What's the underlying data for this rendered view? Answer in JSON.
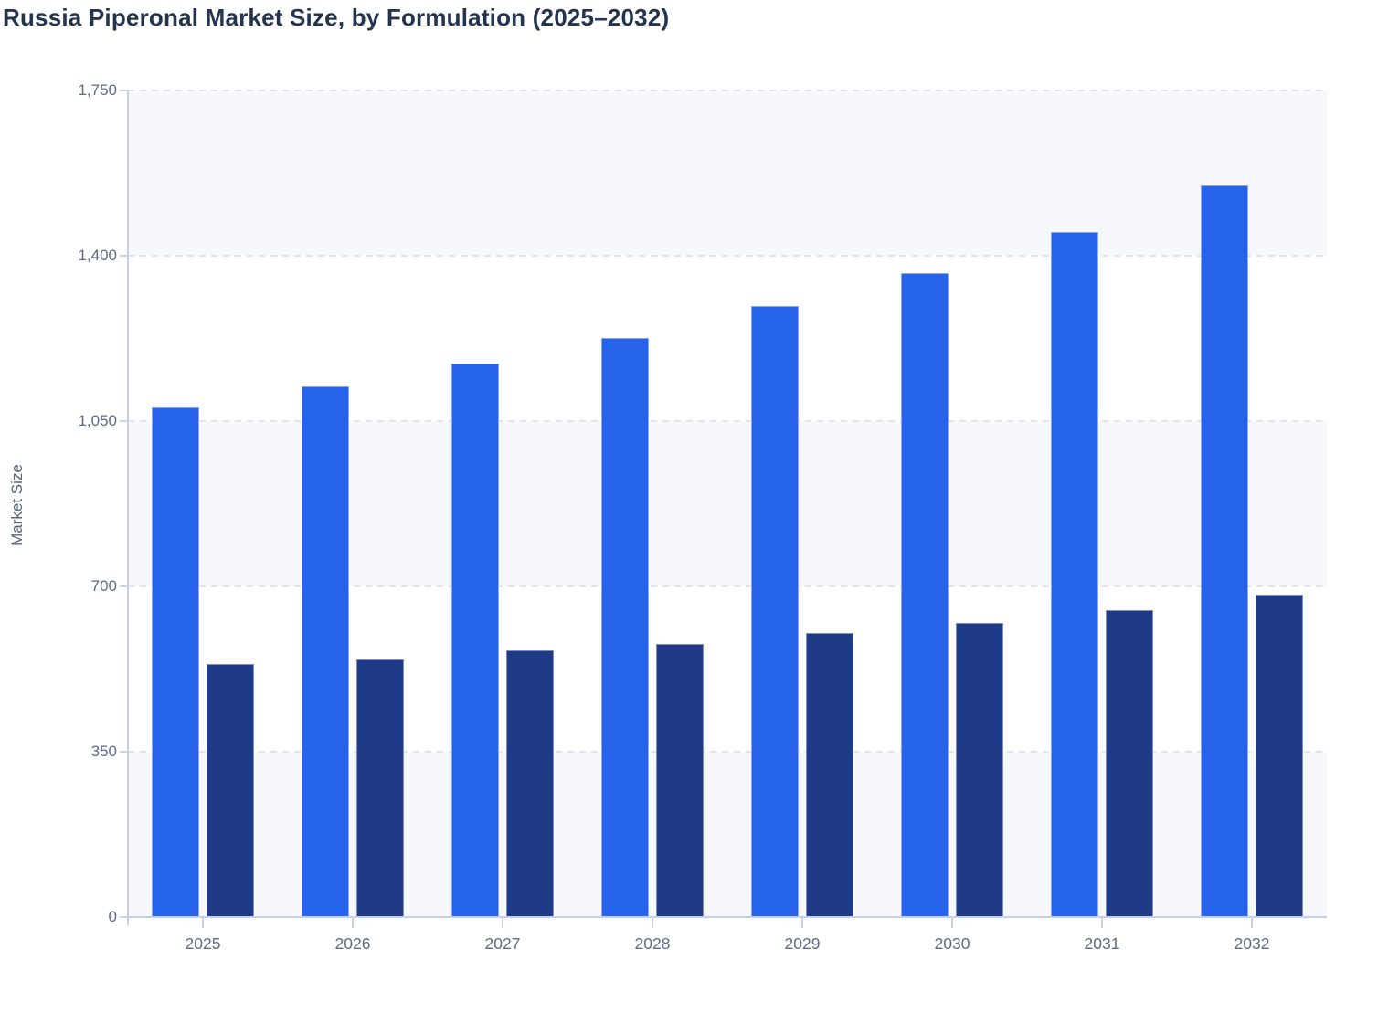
{
  "header": {
    "title": "Russia Piperonal Market Size, by Formulation (2025–2032)"
  },
  "y_axis": {
    "label": "Market Size",
    "tick_labels": [
      "1,750",
      "1,400",
      "1,050",
      "700",
      "350",
      "0"
    ]
  },
  "x_axis": {
    "categories": [
      "2025",
      "2026",
      "2027",
      "2028",
      "2029",
      "2030",
      "2031",
      "2032"
    ]
  },
  "colors": {
    "series_light_blue": "#2663eb",
    "series_dark_navy": "#1f3a87",
    "axis_line": "#c5cfea",
    "gridline": "#e1e4ec",
    "band_fill": "#f7f8fb",
    "tick_label_text": "#5d6b85",
    "title_text": "#24344f"
  },
  "chart_data": {
    "type": "bar",
    "title": "Russia Piperonal Market Size, by Formulation (2025–2032)",
    "categories": [
      "2025",
      "2026",
      "2027",
      "2028",
      "2029",
      "2030",
      "2031",
      "2032"
    ],
    "series": [
      {
        "name": "Light blue series",
        "color": "#2663eb",
        "values": [
          1080,
          1124,
          1172,
          1226,
          1294,
          1364,
          1451,
          1549
        ]
      },
      {
        "name": "Dark navy series",
        "color": "#1f3a87",
        "values": [
          535,
          546,
          564,
          578,
          601,
          623,
          650,
          683
        ]
      }
    ],
    "xlabel": "",
    "ylabel": "Market Size",
    "ylim": [
      0,
      1750
    ],
    "yticks": [
      0,
      350,
      700,
      1050,
      1400,
      1750
    ],
    "grid": "horizontal-dashed",
    "band_shading": "alternating-horizontal",
    "legend": "none"
  }
}
